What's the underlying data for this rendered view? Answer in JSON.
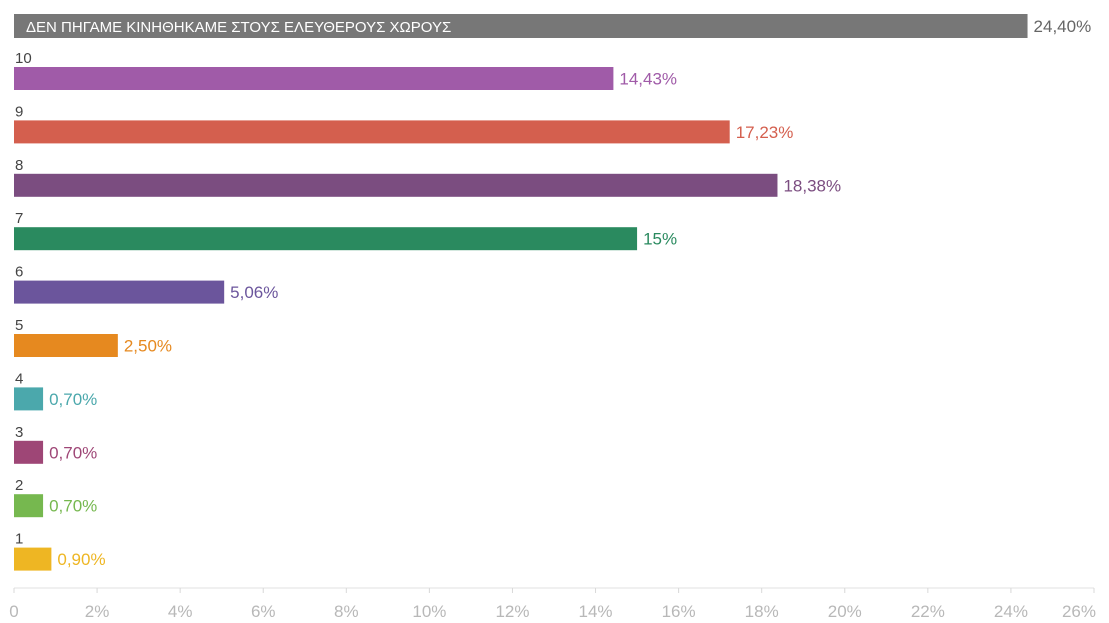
{
  "chart_data": {
    "type": "bar",
    "orientation": "horizontal",
    "categories": [
      "ΔΕΝ ΠΗΓΑΜΕ   ΚΙΝΗΘΗΚΑΜΕ ΣΤΟΥΣ ΕΛΕΥΘΕΡΟΥΣ ΧΩΡΟΥΣ",
      "10",
      "9",
      "8",
      "7",
      "6",
      "5",
      "4",
      "3",
      "2",
      "1"
    ],
    "values": [
      24.4,
      14.43,
      17.23,
      18.38,
      15,
      5.06,
      2.5,
      0.7,
      0.7,
      0.7,
      0.9
    ],
    "value_labels": [
      "24,40%",
      "14,43%",
      "17,23%",
      "18,38%",
      "15%",
      "5,06%",
      "2,50%",
      "0,70%",
      "0,70%",
      "0,70%",
      "0,90%"
    ],
    "colors": [
      "#777777",
      "#a05ba8",
      "#d45f4e",
      "#7b4d80",
      "#2a8a5f",
      "#6b559c",
      "#e6891f",
      "#4ba8ac",
      "#9e4676",
      "#76b84f",
      "#eeb623"
    ],
    "label_colors": [
      "#666666",
      "#a05ba8",
      "#d45f4e",
      "#7b4d80",
      "#2a8a5f",
      "#6b559c",
      "#e6891f",
      "#4ba8ac",
      "#9e4676",
      "#76b84f",
      "#eeb623"
    ],
    "first_label_inside": true,
    "xlim": [
      0,
      26
    ],
    "x_ticks": [
      "0",
      "2%",
      "4%",
      "6%",
      "8%",
      "10%",
      "12%",
      "14%",
      "16%",
      "18%",
      "20%",
      "22%",
      "24%",
      "26%"
    ],
    "grid": false,
    "title": "",
    "xlabel": "",
    "ylabel": ""
  }
}
